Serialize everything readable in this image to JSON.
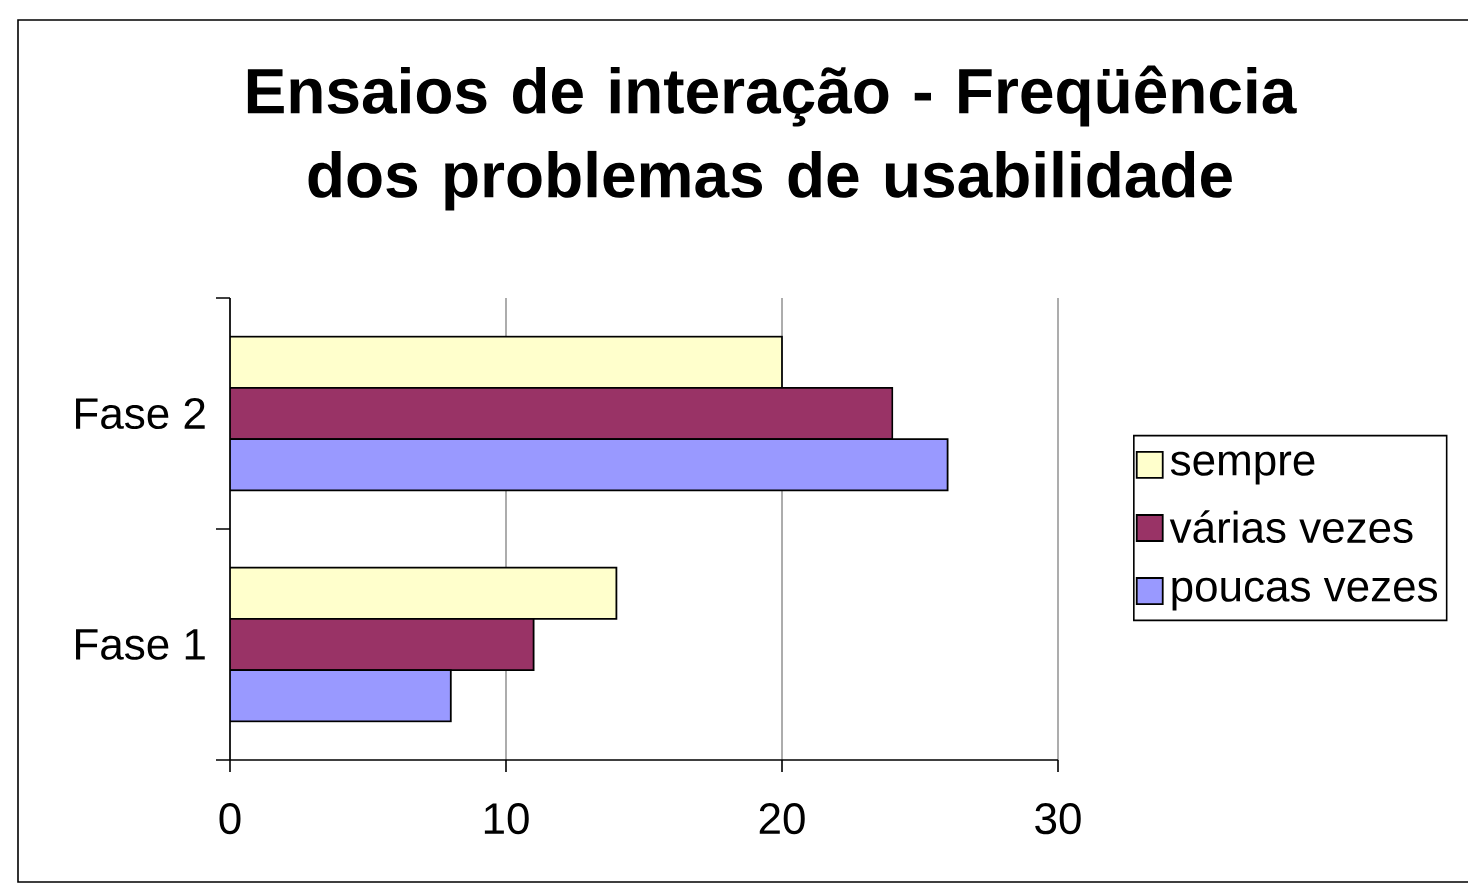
{
  "chart_data": {
    "type": "bar",
    "orientation": "horizontal",
    "title": "Ensaios de interação - Freqüência dos problemas de usabilidade",
    "categories": [
      "Fase 2",
      "Fase 1"
    ],
    "series": [
      {
        "name": "sempre",
        "color": "#ffffcc",
        "values": [
          20,
          14
        ]
      },
      {
        "name": "várias vezes",
        "color": "#993366",
        "values": [
          24,
          11
        ]
      },
      {
        "name": "poucas vezes",
        "color": "#9999ff",
        "values": [
          26,
          8
        ]
      }
    ],
    "xlim": [
      0,
      30
    ],
    "xticks": [
      0,
      10,
      20,
      30
    ],
    "grid": "x",
    "legend": "right"
  }
}
